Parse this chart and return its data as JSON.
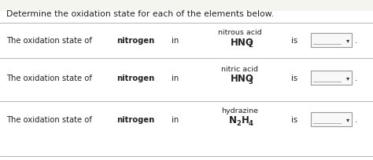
{
  "background_color": "#f5f5f0",
  "row_bg": "#ffffff",
  "header_text": "Determine the oxidation state for each of the elements below.",
  "rows": [
    {
      "prefix": "The oxidation state of",
      "bold_word": "nitrogen",
      "in_text": "in",
      "compound_name": "nitrous acid",
      "formula_main": "HNO",
      "formula_sub1": "2",
      "formula_main2": "",
      "formula_sub2": "",
      "is_text": "is"
    },
    {
      "prefix": "The oxidation state of",
      "bold_word": "nitrogen",
      "in_text": "in",
      "compound_name": "nitric acid",
      "formula_main": "HNO",
      "formula_sub1": "3",
      "formula_main2": "",
      "formula_sub2": "",
      "is_text": "is"
    },
    {
      "prefix": "The oxidation state of",
      "bold_word": "nitrogen",
      "in_text": "in",
      "compound_name": "hydrazine",
      "formula_main": "N",
      "formula_sub1": "2",
      "formula_main2": "H",
      "formula_sub2": "4",
      "is_text": "is"
    }
  ],
  "line_color": "#aaaaaa",
  "text_color": "#222222",
  "header_font_size": 7.8,
  "body_font_size": 7.2,
  "formula_font_size": 8.5,
  "sub_font_size": 6.0,
  "compound_font_size": 6.8,
  "box_line_color": "#999999",
  "box_face_color": "#f8f8f8"
}
